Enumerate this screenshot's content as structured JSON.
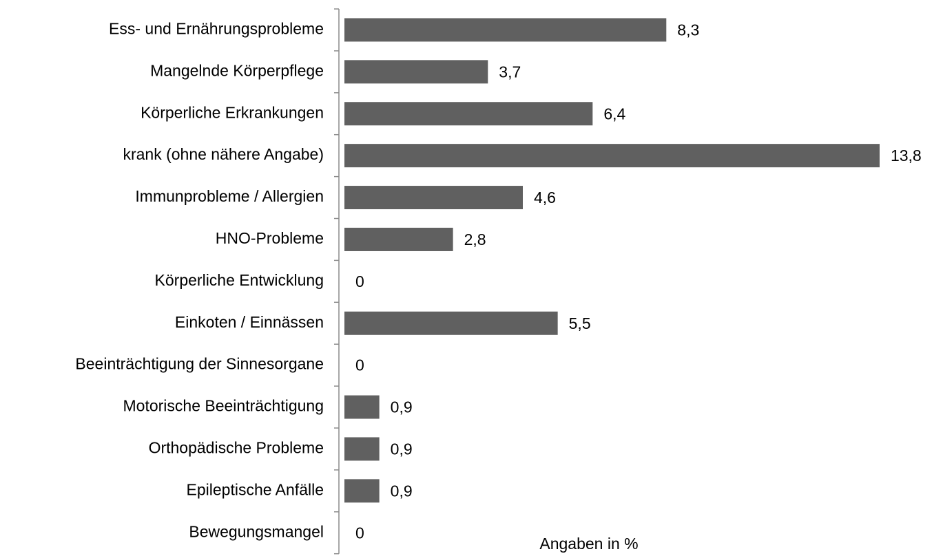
{
  "chart_data": {
    "type": "barh",
    "categories": [
      "Ess- und Ernährungsprobleme",
      "Mangelnde Körperpflege",
      "Körperliche Erkrankungen",
      "krank (ohne nähere Angabe)",
      "Immunprobleme / Allergien",
      "HNO-Probleme",
      "Körperliche Entwicklung",
      "Einkoten / Einnässen",
      "Beeinträchtigung der Sinnesorgane",
      "Motorische Beeinträchtigung",
      "Orthopädische Probleme",
      "Epileptische Anfälle",
      "Bewegungsmangel"
    ],
    "values": [
      8.3,
      3.7,
      6.4,
      13.8,
      4.6,
      2.8,
      0,
      5.5,
      0,
      0.9,
      0.9,
      0.9,
      0
    ],
    "value_labels": [
      "8,3",
      "3,7",
      "6,4",
      "13,8",
      "4,6",
      "2,8",
      "0",
      "5,5",
      "0",
      "0,9",
      "0,9",
      "0,9",
      "0"
    ],
    "color": "#606060",
    "xlabel": "Angaben in %"
  }
}
